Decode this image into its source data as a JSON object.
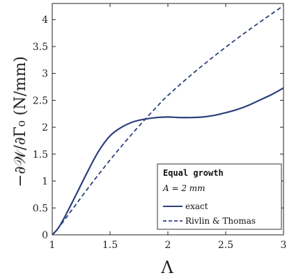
{
  "chart_data": {
    "type": "line",
    "xlabel": "Λ",
    "ylabel": "−∂𝒲/∂Γ₀ (N/mm)",
    "xlim": [
      1,
      3
    ],
    "ylim": [
      0,
      4.3
    ],
    "xticks": [
      "1",
      "1.5",
      "2",
      "2.5",
      "3"
    ],
    "yticks": [
      "0",
      "0.5",
      "1",
      "1.5",
      "2",
      "2.5",
      "3",
      "3.5",
      "4"
    ],
    "grid": false,
    "legend": {
      "placement": "bottom-right",
      "title": "Equal growth",
      "subtitle": "A = 2 mm"
    },
    "series": [
      {
        "name": "exact",
        "style": "solid",
        "color": "#2b3f7a",
        "x": [
          1.0,
          1.05,
          1.1,
          1.2,
          1.3,
          1.4,
          1.5,
          1.6,
          1.7,
          1.8,
          1.9,
          2.0,
          2.1,
          2.2,
          2.3,
          2.4,
          2.5,
          2.6,
          2.7,
          2.8,
          2.9,
          3.0
        ],
        "y": [
          0.0,
          0.12,
          0.3,
          0.72,
          1.15,
          1.55,
          1.84,
          2.0,
          2.1,
          2.15,
          2.18,
          2.19,
          2.18,
          2.18,
          2.19,
          2.22,
          2.27,
          2.33,
          2.41,
          2.51,
          2.61,
          2.73
        ]
      },
      {
        "name": "Rivlin & Thomas",
        "style": "dashed",
        "color": "#2b3f7a",
        "x": [
          1.0,
          1.05,
          1.1,
          1.2,
          1.3,
          1.4,
          1.5,
          1.6,
          1.7,
          1.8,
          1.9,
          2.0,
          2.2,
          2.4,
          2.6,
          2.8,
          3.0
        ],
        "y": [
          0.0,
          0.12,
          0.26,
          0.55,
          0.84,
          1.12,
          1.39,
          1.65,
          1.9,
          2.14,
          2.37,
          2.59,
          2.97,
          3.32,
          3.65,
          3.96,
          4.26
        ]
      }
    ]
  }
}
